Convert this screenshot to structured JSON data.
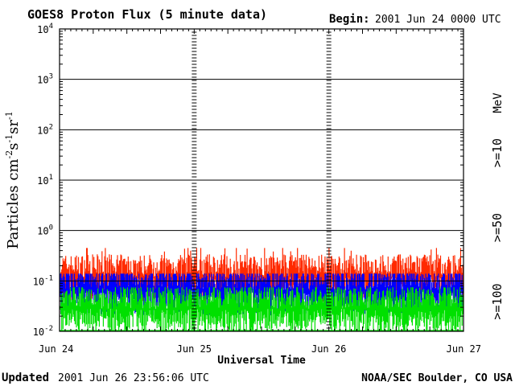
{
  "header": {
    "title": "GOES8 Proton Flux (5 minute data)",
    "begin_label": "Begin:",
    "begin_value": "2001 Jun 24 0000 UTC"
  },
  "footer": {
    "updated_label": "Updated",
    "updated_value": "2001 Jun 26 23:56:06 UTC",
    "credit": "NOAA/SEC Boulder, CO USA"
  },
  "chart_data": {
    "type": "line",
    "ylabel_base": "Particles cm",
    "xlabel": "Universal Time",
    "yscale": "log",
    "ylim": [
      0.01,
      10000
    ],
    "yticks": [
      {
        "exp": "-2",
        "value": 0.01
      },
      {
        "exp": "-1",
        "value": 0.1
      },
      {
        "exp": "0",
        "value": 1
      },
      {
        "exp": "1",
        "value": 10
      },
      {
        "exp": "2",
        "value": 100
      },
      {
        "exp": "3",
        "value": 1000
      },
      {
        "exp": "4",
        "value": 10000
      }
    ],
    "xlim": [
      "2001-06-24",
      "2001-06-27"
    ],
    "xticks": [
      "Jun 24",
      "Jun 25",
      "Jun 26",
      "Jun 27"
    ],
    "right_labels": {
      "unit": "MeV",
      "s10": ">=10",
      "s50": ">=50",
      "s100": ">=100"
    },
    "grid": true,
    "colors": {
      "s10": "#ff2a00",
      "s50": "#0000ff",
      "s100": "#00e000"
    },
    "series": [
      {
        "key": "s10",
        "name": ">=10",
        "typical": 0.12,
        "max": 0.45
      },
      {
        "key": "s50",
        "name": ">=50",
        "typical": 0.065,
        "max": 0.14
      },
      {
        "key": "s100",
        "name": ">=100",
        "typical": 0.028,
        "max": 0.075
      }
    ]
  }
}
